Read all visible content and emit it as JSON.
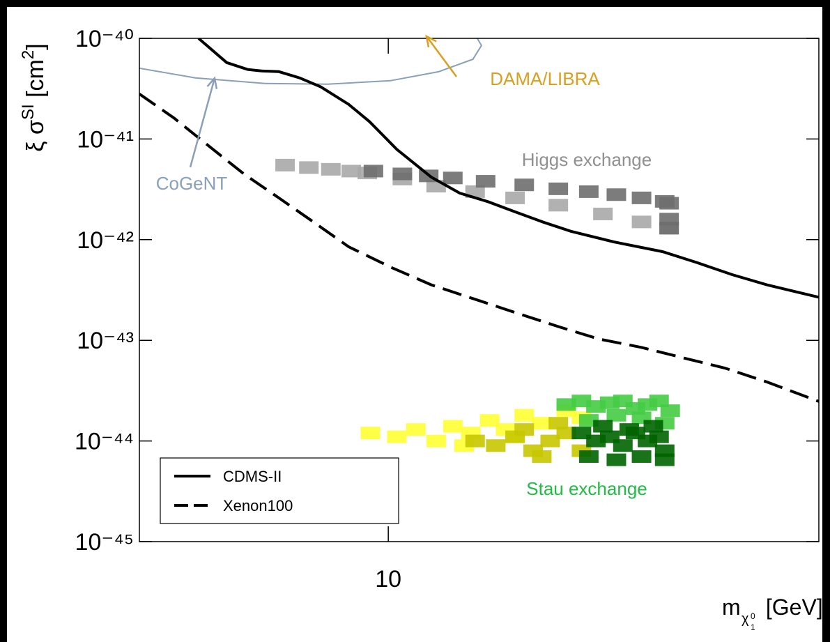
{
  "chart_data": {
    "type": "line",
    "ylabel": [
      "ξ σ",
      "SI",
      " [cm",
      "2",
      "]"
    ],
    "xlabel": [
      "m",
      "χ",
      "0",
      "1",
      " [GeV]"
    ],
    "log_x": true,
    "log_y": true,
    "xlim": [
      4.23,
      44.3
    ],
    "ylim": [
      1e-45,
      1e-40
    ],
    "xticks": [
      {
        "value": 10,
        "label": "10"
      }
    ],
    "yticks": [
      {
        "value": 1e-40,
        "label": "10⁻⁴⁰"
      },
      {
        "value": 1e-41,
        "label": "10⁻⁴¹"
      },
      {
        "value": 1e-42,
        "label": "10⁻⁴²"
      },
      {
        "value": 1e-43,
        "label": "10⁻⁴³"
      },
      {
        "value": 1e-44,
        "label": "10⁻⁴⁴"
      },
      {
        "value": 1e-45,
        "label": "10⁻⁴⁵"
      }
    ],
    "legend": "lower left",
    "series": [
      {
        "name": "CDMS-II",
        "color": "#000000",
        "dash": "solid",
        "x": [
          5.19,
          5.72,
          6.15,
          6.45,
          6.85,
          7.36,
          7.92,
          8.72,
          9.37,
          10.3,
          11.6,
          12.8,
          14.1,
          15.5,
          17.1,
          18.8,
          21.8,
          25.8,
          29.1,
          32.8,
          37.0,
          44.3
        ],
        "y": [
          1e-40,
          5.74e-41,
          4.9e-41,
          4.74e-41,
          4.67e-41,
          4.05e-41,
          3.29e-41,
          2.21e-41,
          1.49e-41,
          7.88e-42,
          4.18e-42,
          2.9e-42,
          2.39e-42,
          1.89e-42,
          1.49e-42,
          1.21e-42,
          9.5e-43,
          7.6e-43,
          5.9e-43,
          4.5e-43,
          3.56e-43,
          2.68e-43
        ]
      },
      {
        "name": "Xenon100",
        "color": "#000000",
        "dash": "dashed",
        "x": [
          4.23,
          4.77,
          5.38,
          6.07,
          6.85,
          7.73,
          8.72,
          10.1,
          11.6,
          13.4,
          15.5,
          18.0,
          20.7,
          24.0,
          27.7,
          32.0,
          37.0,
          44.3
        ],
        "y": [
          2.8e-41,
          1.61e-41,
          8.5e-42,
          4.5e-42,
          2.6e-42,
          1.49e-42,
          8.5e-43,
          5.3e-43,
          3.56e-43,
          2.6e-43,
          1.89e-43,
          1.37e-43,
          1.03e-43,
          8.5e-44,
          6.7e-44,
          5.3e-44,
          3.86e-44,
          2.47e-44
        ]
      }
    ],
    "contours": [
      {
        "color": "#8aa0b8",
        "x": [
          4.23,
          5.13,
          6.53,
          8.11,
          10.07,
          11.9,
          13.4,
          13.8,
          13.6
        ],
        "y": [
          5.05e-41,
          4.05e-41,
          3.56e-41,
          3.51e-41,
          3.79e-41,
          4.66e-41,
          6.2e-41,
          8.5e-41,
          1e-40
        ]
      }
    ],
    "scatter_series": [
      {
        "color": "#a8a8a8",
        "x": [
          7.0,
          7.6,
          8.2,
          8.8,
          9.3,
          10.5,
          11.8,
          13.5,
          15.5,
          18,
          21,
          24,
          26.4
        ],
        "y": [
          5.5e-42,
          5.2e-42,
          5e-42,
          4.8e-42,
          4.6e-42,
          4e-42,
          3.4e-42,
          3e-42,
          2.6e-42,
          2.2e-42,
          1.8e-42,
          1.5e-42,
          1.3e-42
        ]
      },
      {
        "color": "#6e6e6e",
        "x": [
          9.5,
          10.5,
          11.5,
          12.5,
          14,
          16,
          18,
          20,
          22,
          24,
          26,
          26.4,
          26.4,
          26.4
        ],
        "y": [
          4.8e-42,
          4.5e-42,
          4.3e-42,
          4.1e-42,
          3.8e-42,
          3.5e-42,
          3.2e-42,
          3e-42,
          2.8e-42,
          2.6e-42,
          2.4e-42,
          2.3e-42,
          1.6e-42,
          1.3e-42
        ]
      },
      {
        "color": "#ffff33",
        "x": [
          9.4,
          10.3,
          11,
          11.8,
          12.5,
          13.3,
          14.2,
          15,
          16,
          17,
          18.5,
          19.5,
          13,
          15.5
        ],
        "y": [
          1.2e-44,
          1.1e-44,
          1.3e-44,
          1e-44,
          1.4e-44,
          1.2e-44,
          1.6e-44,
          1.3e-44,
          1.8e-44,
          1.5e-44,
          2e-44,
          1.7e-44,
          9e-45,
          1.1e-44
        ]
      },
      {
        "color": "#c8c800",
        "x": [
          13.5,
          14.5,
          15.5,
          16.5,
          17.5,
          18.5,
          19.5,
          16,
          17,
          18
        ],
        "y": [
          1e-44,
          9e-45,
          1.1e-44,
          8e-45,
          1e-44,
          1.2e-44,
          8e-45,
          1.3e-44,
          7e-45,
          1.5e-44
        ]
      },
      {
        "color": "#44cc44",
        "x": [
          18.5,
          19.5,
          20.5,
          21.5,
          22.5,
          23.5,
          24.5,
          25.5,
          26.5,
          20,
          22,
          24,
          26
        ],
        "y": [
          2.3e-44,
          2.5e-44,
          2.2e-44,
          2.4e-44,
          2.5e-44,
          2.1e-44,
          2.3e-44,
          2.5e-44,
          2e-44,
          1.6e-44,
          1.8e-44,
          1.7e-44,
          1.5e-44
        ]
      },
      {
        "color": "#006400",
        "x": [
          19.5,
          20.5,
          21.5,
          22.5,
          23.5,
          24.5,
          25.5,
          26,
          20,
          22,
          24,
          26,
          21,
          23,
          25
        ],
        "y": [
          1.2e-44,
          1e-44,
          1.1e-44,
          9e-45,
          1.2e-44,
          1e-44,
          1.1e-44,
          8e-45,
          7e-45,
          6.5e-45,
          7e-45,
          6.5e-45,
          1.4e-44,
          1.3e-44,
          1.4e-44
        ]
      }
    ],
    "annotations": [
      {
        "text": "DAMA/LIBRA",
        "color": "#d9a020"
      },
      {
        "text": "CoGeNT",
        "color": "#8aa0b8"
      },
      {
        "text": "Higgs exchange",
        "color": "#909090"
      },
      {
        "text": "Stau exchange",
        "color": "#22bb44"
      }
    ]
  }
}
